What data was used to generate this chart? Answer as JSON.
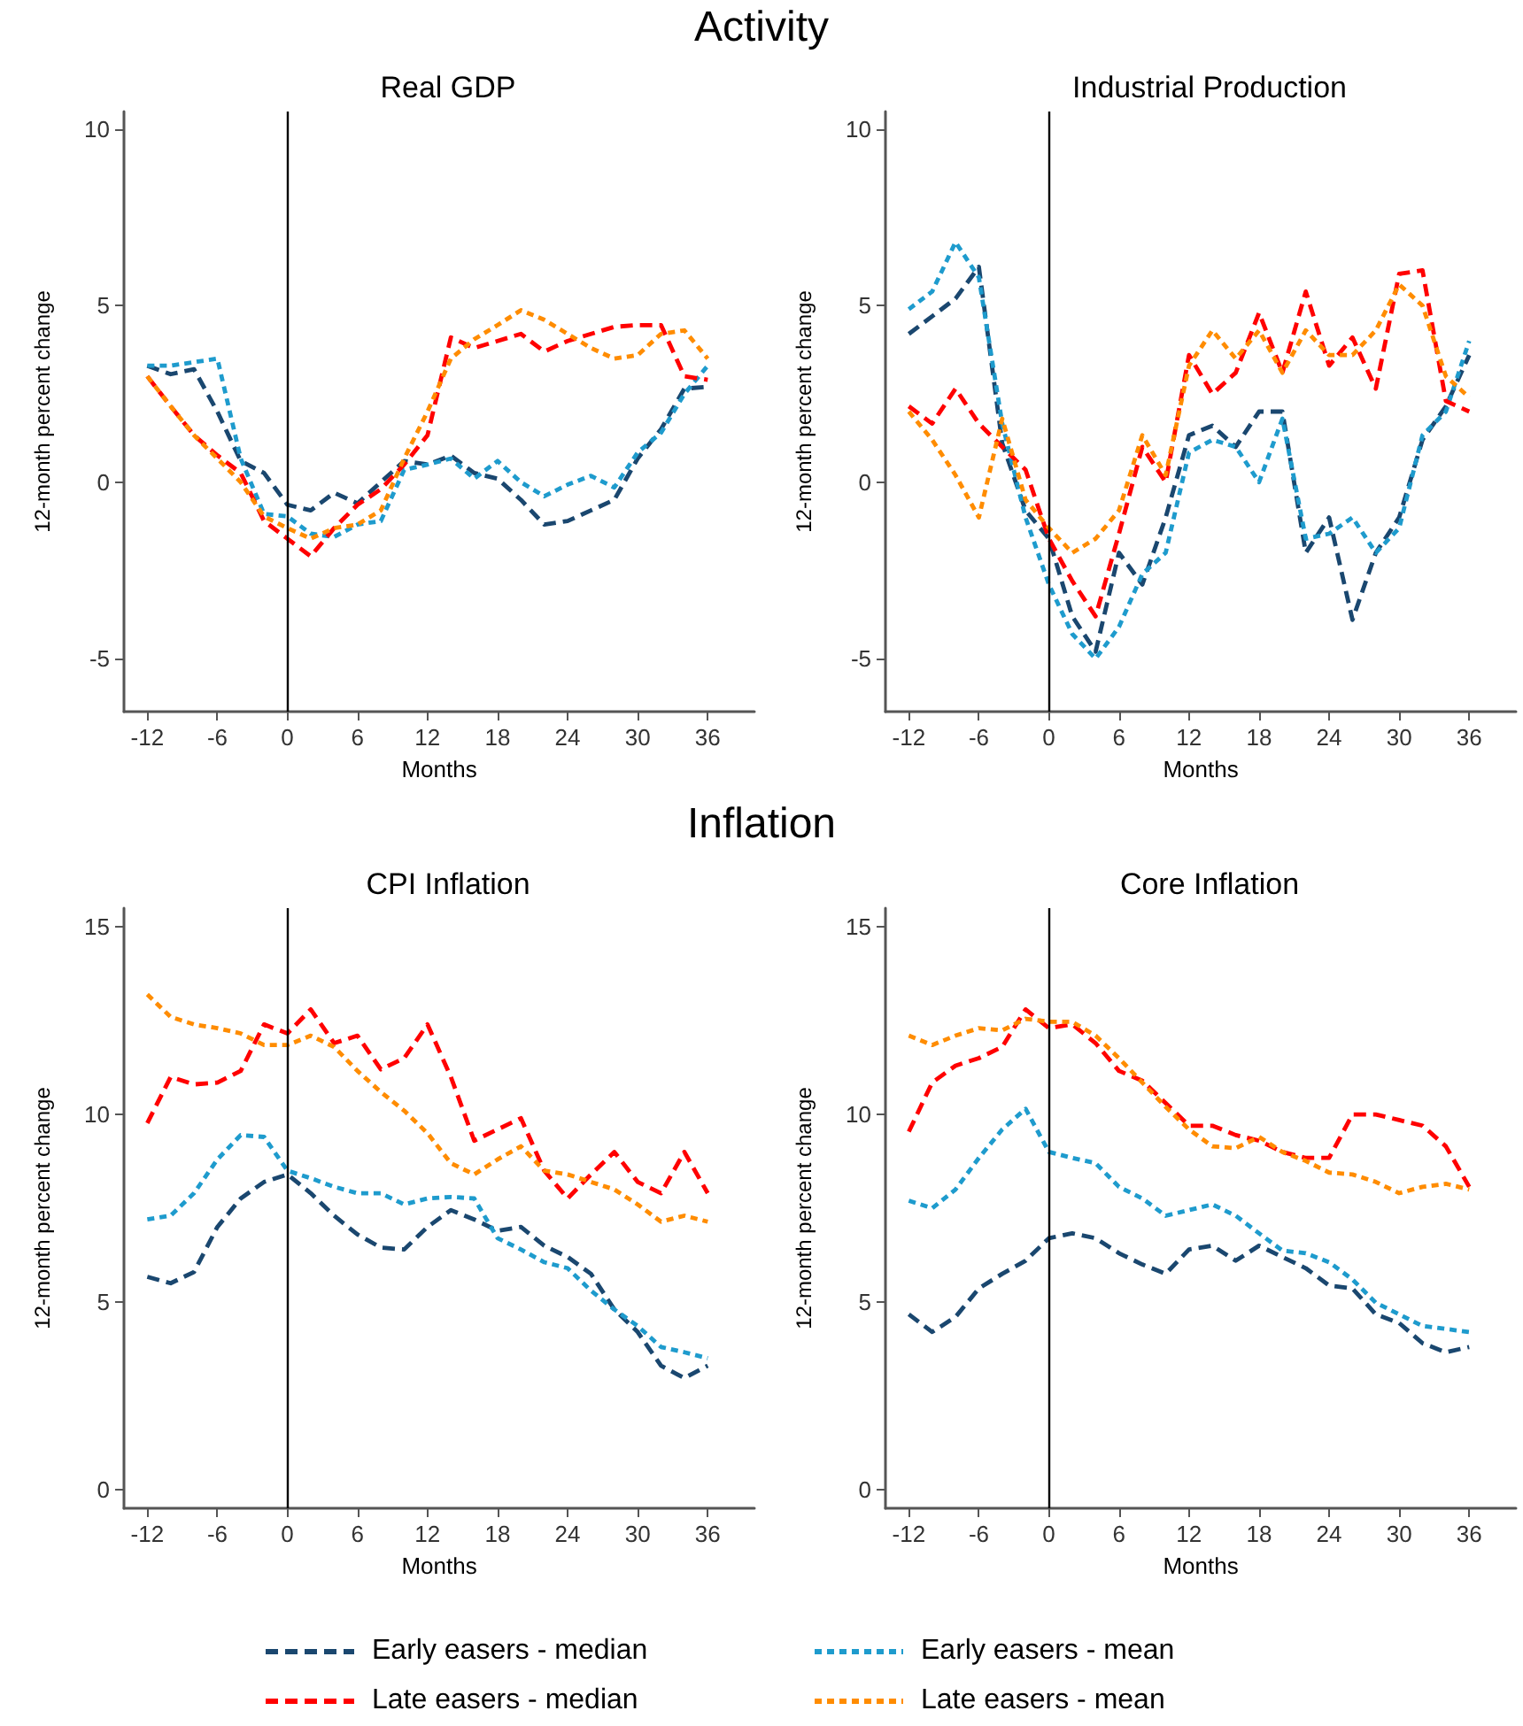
{
  "chart_data": [
    {
      "type": "line",
      "title": "Real GDP",
      "annotations": [
        "Activity"
      ],
      "legend": "bottom",
      "xlabel": "Months",
      "ylabel": "12-month percent change",
      "xlim": [
        -14,
        40
      ],
      "xticks": [
        -12,
        -6,
        0,
        6,
        12,
        18,
        24,
        30,
        36
      ],
      "ylim": [
        -6.5,
        10.5
      ],
      "yticks": [
        -5,
        0,
        5,
        10
      ],
      "ref_lines": [
        {
          "axis": "x",
          "value": 0
        }
      ],
      "x": [
        -12,
        -10,
        -8,
        -6,
        -4,
        -2,
        0,
        2,
        4,
        6,
        8,
        10,
        12,
        14,
        16,
        18,
        20,
        22,
        24,
        26,
        28,
        30,
        32,
        34,
        36
      ],
      "series": [
        {
          "name": "Early easers - median",
          "color": "#1a476f",
          "line_style": "dashed",
          "values": [
            3.3,
            3.06,
            3.2,
            2.0,
            0.6,
            0.26,
            -0.64,
            -0.8,
            -0.3,
            -0.6,
            0,
            0.6,
            0.5,
            0.75,
            0.26,
            0.1,
            -0.5,
            -1.2,
            -1.1,
            -0.8,
            -0.5,
            0.67,
            1.5,
            2.65,
            2.7
          ]
        },
        {
          "name": "Early easers - mean",
          "color": "#1e9bcd",
          "line_style": "dotted",
          "values": [
            3.3,
            3.3,
            3.4,
            3.5,
            0.67,
            -0.9,
            -0.97,
            -1.46,
            -1.55,
            -1.2,
            -1.1,
            0.35,
            0.5,
            0.67,
            0.1,
            0.6,
            0,
            -0.4,
            -0.07,
            0.18,
            -0.15,
            0.84,
            1.4,
            2.5,
            3.3
          ]
        },
        {
          "name": "Late easers - median",
          "color": "#ff0000",
          "line_style": "dashed",
          "values": [
            3.0,
            2.15,
            1.33,
            0.76,
            0.26,
            -1.1,
            -1.6,
            -2.1,
            -1.3,
            -0.64,
            -0.2,
            0.5,
            1.33,
            4.1,
            3.8,
            4.0,
            4.2,
            3.7,
            4.0,
            4.2,
            4.4,
            4.45,
            4.45,
            3.0,
            2.9
          ]
        },
        {
          "name": "Late easers - mean",
          "color": "#ff8c00",
          "line_style": "dotted",
          "values": [
            3.0,
            2.15,
            1.33,
            0.67,
            0,
            -0.97,
            -1.3,
            -1.6,
            -1.3,
            -1.2,
            -0.8,
            0.67,
            2.0,
            3.5,
            4.05,
            4.45,
            4.87,
            4.6,
            4.2,
            3.8,
            3.5,
            3.6,
            4.2,
            4.3,
            3.5
          ]
        }
      ]
    },
    {
      "type": "line",
      "title": "Industrial Production",
      "xlabel": "Months",
      "ylabel": "12-month percent change",
      "xlim": [
        -14,
        40
      ],
      "xticks": [
        -12,
        -6,
        0,
        6,
        12,
        18,
        24,
        30,
        36
      ],
      "ylim": [
        -6.5,
        10.5
      ],
      "yticks": [
        -5,
        0,
        5,
        10
      ],
      "ref_lines": [
        {
          "axis": "x",
          "value": 0
        }
      ],
      "x": [
        -12,
        -10,
        -8,
        -6,
        -4,
        -2,
        0,
        2,
        4,
        6,
        8,
        10,
        12,
        14,
        16,
        18,
        20,
        22,
        24,
        26,
        28,
        30,
        32,
        34,
        36
      ],
      "series": [
        {
          "color": "#1a476f",
          "line_style": "dashed",
          "values": [
            4.2,
            4.7,
            5.2,
            6.1,
            1.1,
            -0.8,
            -1.6,
            -3.8,
            -4.8,
            -2.0,
            -2.9,
            -1.0,
            1.33,
            1.6,
            1.0,
            2.0,
            2.0,
            -2.0,
            -1.0,
            -3.9,
            -2.0,
            -1.0,
            1.2,
            2.15,
            3.6
          ]
        },
        {
          "color": "#1e9bcd",
          "line_style": "dotted",
          "values": [
            4.9,
            5.4,
            6.8,
            5.8,
            1.66,
            -1.0,
            -2.9,
            -4.3,
            -5.0,
            -4.1,
            -2.6,
            -2.0,
            0.84,
            1.2,
            1.0,
            0,
            1.8,
            -1.6,
            -1.46,
            -1.0,
            -2.0,
            -1.3,
            1.33,
            2.0,
            4.0
          ]
        },
        {
          "color": "#ff0000",
          "line_style": "dashed",
          "values": [
            2.15,
            1.66,
            2.65,
            1.66,
            1.0,
            0.35,
            -1.6,
            -2.8,
            -3.8,
            -1.46,
            1.0,
            0,
            3.6,
            2.5,
            3.1,
            4.8,
            3.1,
            5.4,
            3.3,
            4.1,
            2.65,
            5.9,
            6.0,
            2.3,
            2.0
          ]
        },
        {
          "color": "#ff8c00",
          "line_style": "dotted",
          "values": [
            2.0,
            1.2,
            0.2,
            -1.0,
            1.8,
            -0.5,
            -1.3,
            -2.0,
            -1.6,
            -0.8,
            1.33,
            0.2,
            3.3,
            4.3,
            3.5,
            4.3,
            3.1,
            4.3,
            3.6,
            3.6,
            4.3,
            5.6,
            5.0,
            3.0,
            2.4
          ]
        }
      ]
    },
    {
      "type": "line",
      "title": "CPI Inflation",
      "annotations": [
        "Inflation"
      ],
      "xlabel": "Months",
      "ylabel": "12-month percent change",
      "xlim": [
        -14,
        40
      ],
      "xticks": [
        -12,
        -6,
        0,
        6,
        12,
        18,
        24,
        30,
        36
      ],
      "ylim": [
        -0.5,
        15.5
      ],
      "yticks": [
        0,
        5,
        10,
        15
      ],
      "ref_lines": [
        {
          "axis": "x",
          "value": 0
        }
      ],
      "x": [
        -12,
        -10,
        -8,
        -6,
        -4,
        -2,
        0,
        2,
        4,
        6,
        8,
        10,
        12,
        14,
        16,
        18,
        20,
        22,
        24,
        26,
        28,
        30,
        32,
        34,
        36
      ],
      "series": [
        {
          "color": "#1a476f",
          "line_style": "dashed",
          "values": [
            5.67,
            5.5,
            5.8,
            7.0,
            7.76,
            8.2,
            8.4,
            7.9,
            7.3,
            6.8,
            6.45,
            6.4,
            7.0,
            7.45,
            7.2,
            6.9,
            7.0,
            6.5,
            6.2,
            5.75,
            4.8,
            4.2,
            3.3,
            2.97,
            3.3
          ]
        },
        {
          "color": "#1e9bcd",
          "line_style": "dotted",
          "values": [
            7.2,
            7.3,
            7.9,
            8.8,
            9.45,
            9.4,
            8.5,
            8.3,
            8.07,
            7.9,
            7.9,
            7.6,
            7.76,
            7.8,
            7.76,
            6.7,
            6.4,
            6.06,
            5.9,
            5.3,
            4.8,
            4.36,
            3.8,
            3.66,
            3.5
          ]
        },
        {
          "color": "#ff0000",
          "line_style": "dashed",
          "values": [
            9.77,
            11.0,
            10.8,
            10.85,
            11.16,
            12.4,
            12.16,
            12.8,
            11.9,
            12.1,
            11.2,
            11.5,
            12.4,
            11.0,
            9.3,
            9.6,
            9.9,
            8.5,
            7.76,
            8.4,
            9.0,
            8.2,
            7.9,
            9.0,
            7.9
          ]
        },
        {
          "color": "#ff8c00",
          "line_style": "dotted",
          "values": [
            13.2,
            12.6,
            12.4,
            12.3,
            12.16,
            11.85,
            11.85,
            12.1,
            11.8,
            11.16,
            10.6,
            10.1,
            9.5,
            8.7,
            8.4,
            8.8,
            9.15,
            8.5,
            8.4,
            8.2,
            8.0,
            7.6,
            7.14,
            7.3,
            7.14
          ]
        }
      ]
    },
    {
      "type": "line",
      "title": "Core Inflation",
      "xlabel": "Months",
      "ylabel": "12-month percent change",
      "xlim": [
        -14,
        40
      ],
      "xticks": [
        -12,
        -6,
        0,
        6,
        12,
        18,
        24,
        30,
        36
      ],
      "ylim": [
        -0.5,
        15.5
      ],
      "yticks": [
        0,
        5,
        10,
        15
      ],
      "ref_lines": [
        {
          "axis": "x",
          "value": 0
        }
      ],
      "x": [
        -12,
        -10,
        -8,
        -6,
        -4,
        -2,
        0,
        2,
        4,
        6,
        8,
        10,
        12,
        14,
        16,
        18,
        20,
        22,
        24,
        26,
        28,
        30,
        32,
        34,
        36
      ],
      "series": [
        {
          "color": "#1a476f",
          "line_style": "dashed",
          "values": [
            4.67,
            4.2,
            4.6,
            5.36,
            5.75,
            6.1,
            6.7,
            6.83,
            6.7,
            6.3,
            6.0,
            5.75,
            6.4,
            6.5,
            6.1,
            6.5,
            6.2,
            5.9,
            5.44,
            5.36,
            4.67,
            4.44,
            3.9,
            3.66,
            3.8
          ]
        },
        {
          "color": "#1e9bcd",
          "line_style": "dotted",
          "values": [
            7.7,
            7.5,
            8.0,
            8.84,
            9.6,
            10.15,
            9.0,
            8.84,
            8.7,
            8.07,
            7.76,
            7.3,
            7.45,
            7.6,
            7.3,
            6.83,
            6.37,
            6.3,
            6.06,
            5.6,
            4.98,
            4.67,
            4.36,
            4.28,
            4.2
          ]
        },
        {
          "color": "#ff0000",
          "line_style": "dashed",
          "values": [
            9.54,
            10.85,
            11.3,
            11.5,
            11.8,
            12.8,
            12.3,
            12.4,
            11.9,
            11.16,
            10.9,
            10.3,
            9.7,
            9.7,
            9.45,
            9.3,
            9.0,
            8.84,
            8.84,
            10.0,
            10.0,
            9.85,
            9.7,
            9.15,
            8.07
          ]
        },
        {
          "color": "#ff8c00",
          "line_style": "dotted",
          "values": [
            12.1,
            11.85,
            12.1,
            12.3,
            12.24,
            12.55,
            12.47,
            12.47,
            12.1,
            11.5,
            10.85,
            10.2,
            9.6,
            9.15,
            9.1,
            9.4,
            9.0,
            8.76,
            8.45,
            8.4,
            8.2,
            7.9,
            8.07,
            8.15,
            8.0
          ]
        }
      ]
    }
  ]
}
